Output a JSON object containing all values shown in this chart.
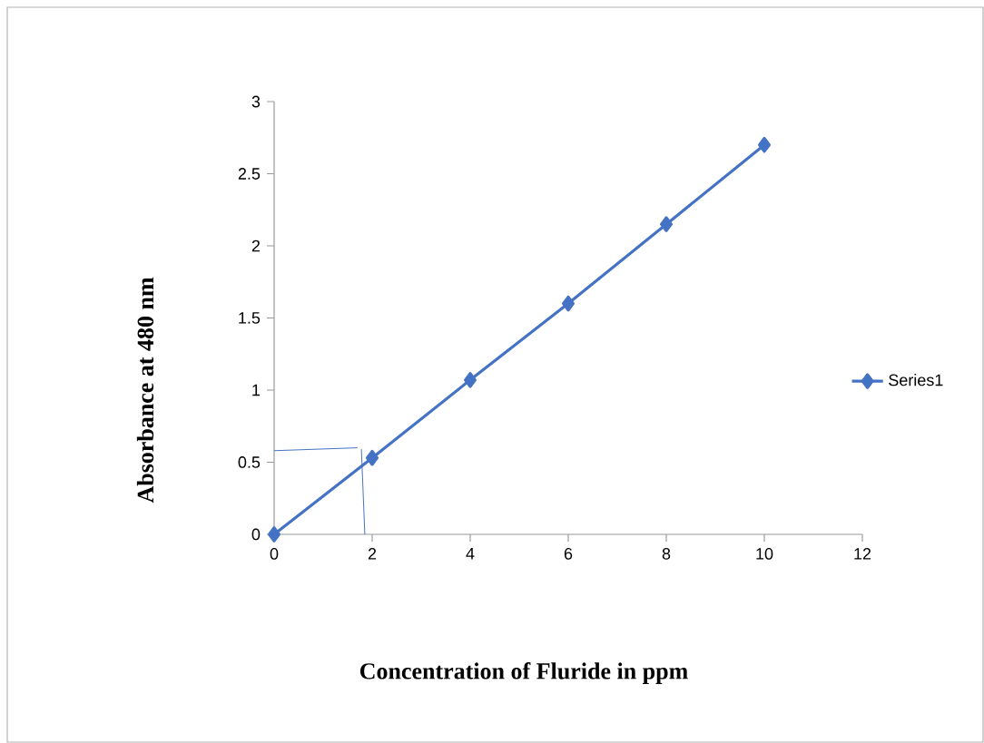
{
  "chart_data": {
    "type": "line",
    "xlabel": "Concentration of Fluride in ppm",
    "ylabel": "Absorbance at  480 nm",
    "xlim": [
      0,
      12
    ],
    "xticks": [
      0,
      2,
      4,
      6,
      8,
      10,
      12
    ],
    "ylim": [
      0,
      3
    ],
    "yticks": [
      0,
      0.5,
      1,
      1.5,
      2,
      2.5,
      3
    ],
    "grid": false,
    "legend": "right",
    "line_style": "solid",
    "series": [
      {
        "name": "Series1",
        "color": "#4472c4",
        "marker": "diamond",
        "x": [
          0,
          2,
          4,
          6,
          8,
          10
        ],
        "values": [
          0,
          0.53,
          1.07,
          1.6,
          2.15,
          2.7
        ]
      },
      {
        "color": "#4472c4",
        "marker": "none",
        "x": [
          0,
          1.7
        ],
        "values": [
          0.58,
          0.6
        ]
      },
      {
        "color": "#4472c4",
        "marker": "none",
        "x": [
          1.78,
          1.85
        ],
        "values": [
          0.59,
          0
        ]
      }
    ]
  }
}
